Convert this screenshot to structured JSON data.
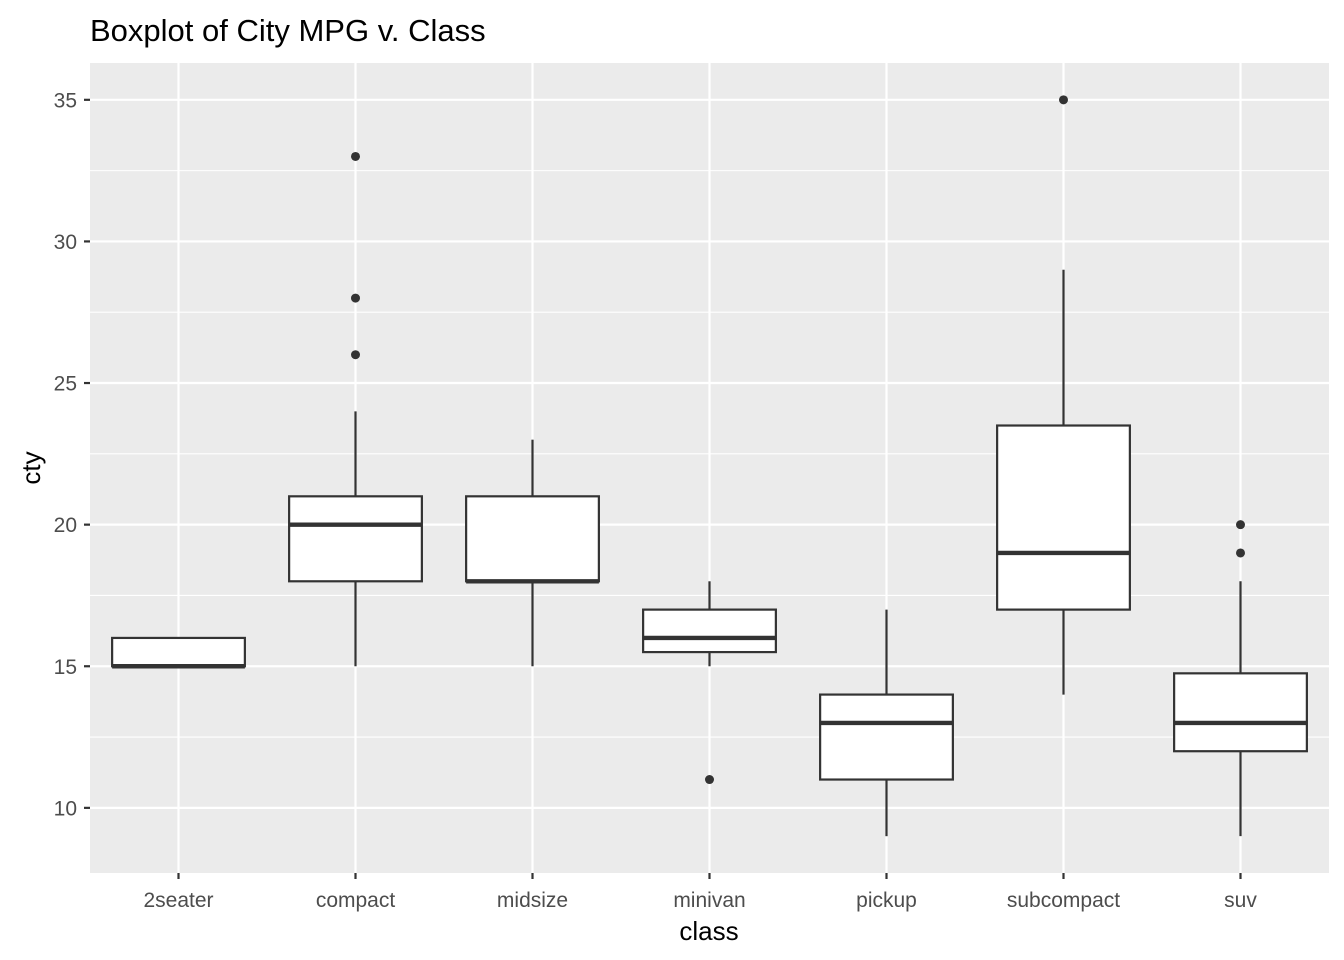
{
  "chart_data": {
    "type": "boxplot",
    "title": "Boxplot of City MPG v. Class",
    "xlabel": "class",
    "ylabel": "cty",
    "ylim": [
      7.7,
      36.3
    ],
    "yticks": [
      10,
      15,
      20,
      25,
      30,
      35
    ],
    "ytick_labels": [
      "10",
      "15",
      "20",
      "25",
      "30",
      "35"
    ],
    "grid": true,
    "categories": [
      "2seater",
      "compact",
      "midsize",
      "minivan",
      "pickup",
      "subcompact",
      "suv"
    ],
    "boxes": [
      {
        "category": "2seater",
        "q1": 15,
        "median": 15,
        "q3": 16,
        "whisker_low": 15,
        "whisker_high": 16,
        "outliers": []
      },
      {
        "category": "compact",
        "q1": 18,
        "median": 20,
        "q3": 21,
        "whisker_low": 15,
        "whisker_high": 24,
        "outliers": [
          26,
          28,
          33
        ]
      },
      {
        "category": "midsize",
        "q1": 18,
        "median": 18,
        "q3": 21,
        "whisker_low": 15,
        "whisker_high": 23,
        "outliers": []
      },
      {
        "category": "minivan",
        "q1": 15.5,
        "median": 16,
        "q3": 17,
        "whisker_low": 15,
        "whisker_high": 18,
        "outliers": [
          11
        ]
      },
      {
        "category": "pickup",
        "q1": 11,
        "median": 13,
        "q3": 14,
        "whisker_low": 9,
        "whisker_high": 17,
        "outliers": []
      },
      {
        "category": "subcompact",
        "q1": 17,
        "median": 19,
        "q3": 23.5,
        "whisker_low": 14,
        "whisker_high": 29,
        "outliers": [
          35
        ]
      },
      {
        "category": "suv",
        "q1": 12,
        "median": 13,
        "q3": 14.75,
        "whisker_low": 9,
        "whisker_high": 18,
        "outliers": [
          19,
          20
        ]
      }
    ],
    "colors": {
      "panel": "#ebebeb",
      "grid": "#ffffff",
      "box_fill": "#ffffff",
      "box_line": "#333333",
      "tick_label": "#4d4d4d",
      "text": "#000000"
    }
  }
}
